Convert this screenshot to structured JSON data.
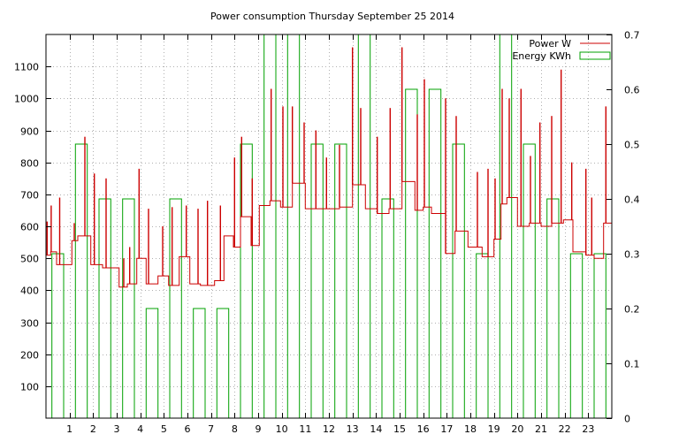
{
  "chart_data": {
    "title": "Power consumption Thursday September 25 2014",
    "type": "line",
    "x_ticks": [
      "1",
      "2",
      "3",
      "4",
      "5",
      "6",
      "7",
      "8",
      "9",
      "10",
      "11",
      "12",
      "13",
      "14",
      "15",
      "16",
      "17",
      "18",
      "19",
      "20",
      "21",
      "22",
      "23"
    ],
    "xlim": [
      0,
      24
    ],
    "y_left": {
      "ylim": [
        0,
        1200
      ],
      "ticks": [
        100,
        200,
        300,
        400,
        500,
        600,
        700,
        800,
        900,
        1000,
        1100
      ]
    },
    "y_right": {
      "ylim": [
        0,
        0.7
      ],
      "ticks": [
        "0",
        "0.1",
        "0.2",
        "0.3",
        "0.4",
        "0.5",
        "0.6",
        "0.7"
      ]
    },
    "grid": true,
    "legend_position": "top-right",
    "series": [
      {
        "name": "Power W",
        "type": "step-line",
        "axis": "left",
        "color": "#cc0000",
        "segments": [
          [
            0.0,
            0.2,
            510
          ],
          [
            0.2,
            0.45,
            520
          ],
          [
            0.45,
            0.65,
            480
          ],
          [
            0.65,
            1.1,
            480
          ],
          [
            1.1,
            1.35,
            555
          ],
          [
            1.35,
            1.9,
            570
          ],
          [
            1.9,
            2.4,
            480
          ],
          [
            2.4,
            2.75,
            470
          ],
          [
            2.75,
            3.1,
            470
          ],
          [
            3.1,
            3.45,
            410
          ],
          [
            3.45,
            3.85,
            420
          ],
          [
            3.85,
            4.25,
            500
          ],
          [
            4.25,
            4.75,
            420
          ],
          [
            4.75,
            5.2,
            445
          ],
          [
            5.2,
            5.65,
            415
          ],
          [
            5.65,
            6.1,
            505
          ],
          [
            6.1,
            6.55,
            420
          ],
          [
            6.55,
            7.15,
            415
          ],
          [
            7.15,
            7.55,
            430
          ],
          [
            7.55,
            7.95,
            570
          ],
          [
            7.95,
            8.25,
            535
          ],
          [
            8.25,
            8.7,
            630
          ],
          [
            8.7,
            9.05,
            540
          ],
          [
            9.05,
            9.5,
            665
          ],
          [
            9.5,
            9.95,
            680
          ],
          [
            9.95,
            10.45,
            660
          ],
          [
            10.45,
            11.0,
            735
          ],
          [
            11.0,
            11.75,
            655
          ],
          [
            11.75,
            12.45,
            655
          ],
          [
            12.45,
            13.0,
            660
          ],
          [
            13.0,
            13.55,
            730
          ],
          [
            13.55,
            14.05,
            655
          ],
          [
            14.05,
            14.55,
            640
          ],
          [
            14.55,
            15.1,
            655
          ],
          [
            15.1,
            15.65,
            740
          ],
          [
            15.65,
            16.0,
            650
          ],
          [
            16.0,
            16.35,
            660
          ],
          [
            16.35,
            16.95,
            640
          ],
          [
            16.95,
            17.35,
            515
          ],
          [
            17.35,
            17.9,
            585
          ],
          [
            17.9,
            18.5,
            535
          ],
          [
            18.5,
            19.0,
            505
          ],
          [
            19.0,
            19.3,
            560
          ],
          [
            19.3,
            19.55,
            670
          ],
          [
            19.55,
            20.0,
            690
          ],
          [
            20.0,
            20.5,
            600
          ],
          [
            20.5,
            21.0,
            610
          ],
          [
            21.0,
            21.45,
            600
          ],
          [
            21.45,
            21.95,
            610
          ],
          [
            21.95,
            22.35,
            620
          ],
          [
            22.35,
            22.9,
            520
          ],
          [
            22.9,
            23.25,
            510
          ],
          [
            23.25,
            23.65,
            500
          ],
          [
            23.65,
            24.0,
            610
          ]
        ],
        "spikes": [
          [
            0.05,
            615
          ],
          [
            0.22,
            665
          ],
          [
            0.58,
            690
          ],
          [
            1.2,
            610
          ],
          [
            1.65,
            880
          ],
          [
            2.05,
            765
          ],
          [
            2.55,
            750
          ],
          [
            3.3,
            500
          ],
          [
            3.55,
            535
          ],
          [
            3.95,
            780
          ],
          [
            4.35,
            655
          ],
          [
            4.95,
            600
          ],
          [
            5.35,
            660
          ],
          [
            5.95,
            665
          ],
          [
            6.45,
            655
          ],
          [
            6.85,
            680
          ],
          [
            7.4,
            665
          ],
          [
            8.0,
            815
          ],
          [
            8.3,
            880
          ],
          [
            8.75,
            750
          ],
          [
            9.55,
            1030
          ],
          [
            10.05,
            975
          ],
          [
            10.45,
            975
          ],
          [
            10.95,
            925
          ],
          [
            11.45,
            900
          ],
          [
            11.9,
            815
          ],
          [
            12.45,
            855
          ],
          [
            13.0,
            1160
          ],
          [
            13.35,
            970
          ],
          [
            14.05,
            880
          ],
          [
            14.6,
            970
          ],
          [
            15.1,
            1160
          ],
          [
            15.75,
            950
          ],
          [
            16.05,
            1060
          ],
          [
            16.95,
            1000
          ],
          [
            17.4,
            945
          ],
          [
            18.3,
            770
          ],
          [
            18.75,
            780
          ],
          [
            19.05,
            750
          ],
          [
            19.35,
            1030
          ],
          [
            19.65,
            1000
          ],
          [
            20.15,
            1030
          ],
          [
            20.55,
            820
          ],
          [
            20.95,
            925
          ],
          [
            21.45,
            945
          ],
          [
            21.85,
            1090
          ],
          [
            22.3,
            800
          ],
          [
            22.9,
            780
          ],
          [
            23.15,
            690
          ],
          [
            23.75,
            975
          ]
        ]
      },
      {
        "name": "Energy KWh",
        "type": "bar",
        "axis": "right",
        "color": "#00a000",
        "x": [
          0,
          1,
          2,
          3,
          4,
          5,
          6,
          7,
          8,
          9,
          10,
          11,
          12,
          13,
          14,
          15,
          16,
          17,
          18,
          19,
          20,
          21,
          22,
          23
        ],
        "values": [
          0.3,
          0.5,
          0.4,
          0.4,
          0.2,
          0.4,
          0.2,
          0.2,
          0.5,
          0.7,
          0.7,
          0.5,
          0.5,
          0.7,
          0.4,
          0.6,
          0.6,
          0.5,
          0.3,
          0.7,
          0.5,
          0.4,
          0.3,
          0.3
        ]
      }
    ]
  }
}
